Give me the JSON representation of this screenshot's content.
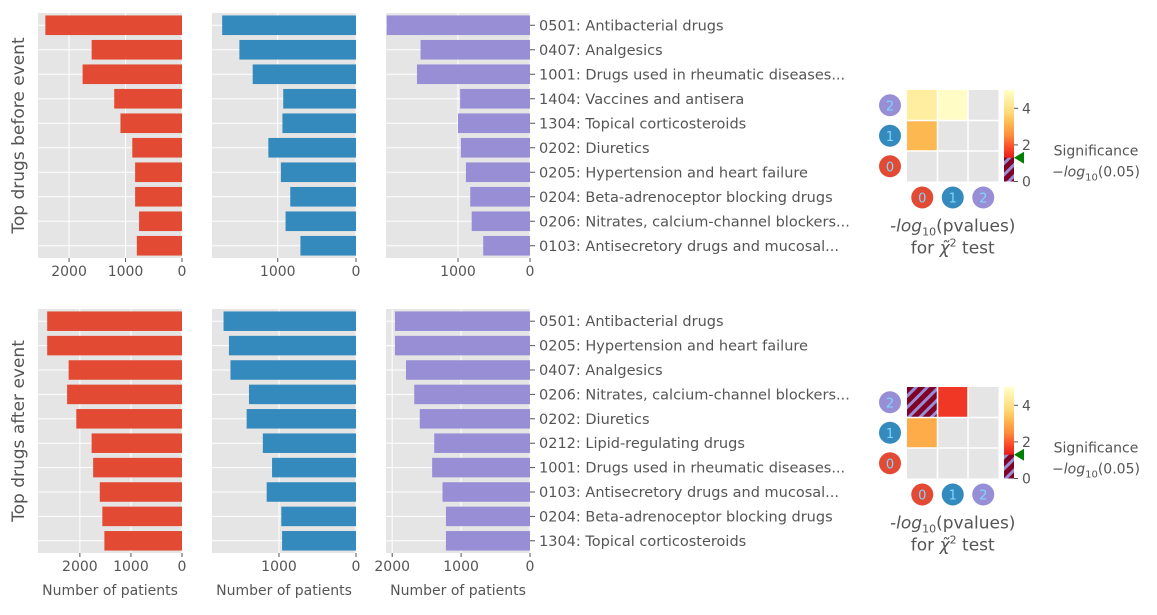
{
  "colors": {
    "group0": "#e24a33",
    "group1": "#348abd",
    "group2": "#988ed5",
    "panel_bg": "#e5e5e5",
    "grid": "#ffffff",
    "threshold_marker": "#008000",
    "text": "#555555"
  },
  "xlabel_shared": "Number of patients",
  "chart_data": [
    {
      "type": "bar",
      "orientation": "horizontal",
      "row": "before",
      "ylabel": "Top drugs before event",
      "categories": [
        "0501: Antibacterial drugs",
        "0407: Analgesics",
        "1001: Drugs used in rheumatic diseases...",
        "1404: Vaccines and antisera",
        "1304: Topical corticosteroids",
        "0202: Diuretics",
        "0205: Hypertension and heart failure",
        "0204: Beta-adrenoceptor blocking drugs",
        "0206: Nitrates, calcium-channel blockers...",
        "0103: Antisecretory drugs and mucosal..."
      ],
      "panels": [
        {
          "group": 0,
          "xlim": [
            2550,
            0
          ],
          "xticks": [
            2000,
            1000,
            0
          ],
          "xticklabels": [
            "2000",
            "1000",
            "0"
          ],
          "values": [
            2420,
            1600,
            1760,
            1200,
            1090,
            880,
            830,
            830,
            760,
            800
          ]
        },
        {
          "group": 1,
          "xlim": [
            1840,
            0
          ],
          "xticks": [
            1000,
            0
          ],
          "xticklabels": [
            "1000",
            "0"
          ],
          "values": [
            1710,
            1490,
            1320,
            930,
            940,
            1120,
            960,
            840,
            900,
            710
          ]
        },
        {
          "group": 2,
          "xlim": [
            2000,
            0
          ],
          "xticks": [
            1000,
            0
          ],
          "xticklabels": [
            "1000",
            "0"
          ],
          "values": [
            1990,
            1520,
            1570,
            970,
            1000,
            960,
            890,
            830,
            810,
            650
          ]
        }
      ]
    },
    {
      "type": "bar",
      "orientation": "horizontal",
      "row": "after",
      "ylabel": "Top drugs after event",
      "categories": [
        "0501: Antibacterial drugs",
        "0205: Hypertension and heart failure",
        "0407: Analgesics",
        "0206: Nitrates, calcium-channel blockers...",
        "0202: Diuretics",
        "0212: Lipid-regulating drugs",
        "1001: Drugs used in rheumatic diseases...",
        "0103: Antisecretory drugs and mucosal...",
        "0204: Beta-adrenoceptor blocking drugs",
        "1304: Topical corticosteroids"
      ],
      "panels": [
        {
          "group": 0,
          "xlim": [
            2820,
            0
          ],
          "xticks": [
            2000,
            1000,
            0
          ],
          "xticklabels": [
            "2000",
            "1000",
            "0"
          ],
          "values": [
            2640,
            2640,
            2220,
            2250,
            2070,
            1770,
            1740,
            1610,
            1560,
            1520
          ],
          "xlabel": "Number of patients"
        },
        {
          "group": 1,
          "xlim": [
            1870,
            0
          ],
          "xticks": [
            1000,
            0
          ],
          "xticklabels": [
            "1000",
            "0"
          ],
          "values": [
            1720,
            1650,
            1630,
            1390,
            1420,
            1210,
            1090,
            1160,
            970,
            960
          ],
          "xlabel": "Number of patients"
        },
        {
          "group": 2,
          "xlim": [
            2090,
            0
          ],
          "xticks": [
            2000,
            1000,
            0
          ],
          "xticklabels": [
            "2000",
            "1000",
            "0"
          ],
          "values": [
            1960,
            1960,
            1800,
            1680,
            1600,
            1390,
            1420,
            1270,
            1220,
            1220
          ],
          "xlabel": "Number of patients"
        }
      ]
    },
    {
      "type": "heatmap",
      "row": "before",
      "xlabel_lines": [
        "-log10(pvalues)",
        "for χ̃2 test"
      ],
      "xticklabels": [
        "0",
        "1",
        "2"
      ],
      "yticklabels": [
        "0",
        "1",
        "2"
      ],
      "cells": [
        [
          null,
          null,
          null
        ],
        [
          3.2,
          null,
          null
        ],
        [
          4.4,
          4.9,
          null
        ]
      ],
      "hatched": [],
      "colorbar": {
        "range": [
          0,
          5
        ],
        "ticks": [
          0,
          2,
          4
        ],
        "tick_labels": [
          "0",
          "2",
          "4"
        ],
        "threshold": 1.3,
        "threshold_label_lines": [
          "Significance",
          "−log10(0.05)"
        ]
      }
    },
    {
      "type": "heatmap",
      "row": "after",
      "xlabel_lines": [
        "-log10(pvalues)",
        "for χ̃2 test"
      ],
      "xticklabels": [
        "0",
        "1",
        "2"
      ],
      "yticklabels": [
        "0",
        "1",
        "2"
      ],
      "cells": [
        [
          null,
          null,
          null
        ],
        [
          3.0,
          null,
          null
        ],
        [
          0.6,
          1.6,
          null
        ]
      ],
      "hatched": [
        [
          2,
          0
        ]
      ],
      "colorbar": {
        "range": [
          0,
          5
        ],
        "ticks": [
          0,
          2,
          4
        ],
        "tick_labels": [
          "0",
          "2",
          "4"
        ],
        "threshold": 1.3,
        "threshold_label_lines": [
          "Significance",
          "−log10(0.05)"
        ]
      }
    }
  ]
}
